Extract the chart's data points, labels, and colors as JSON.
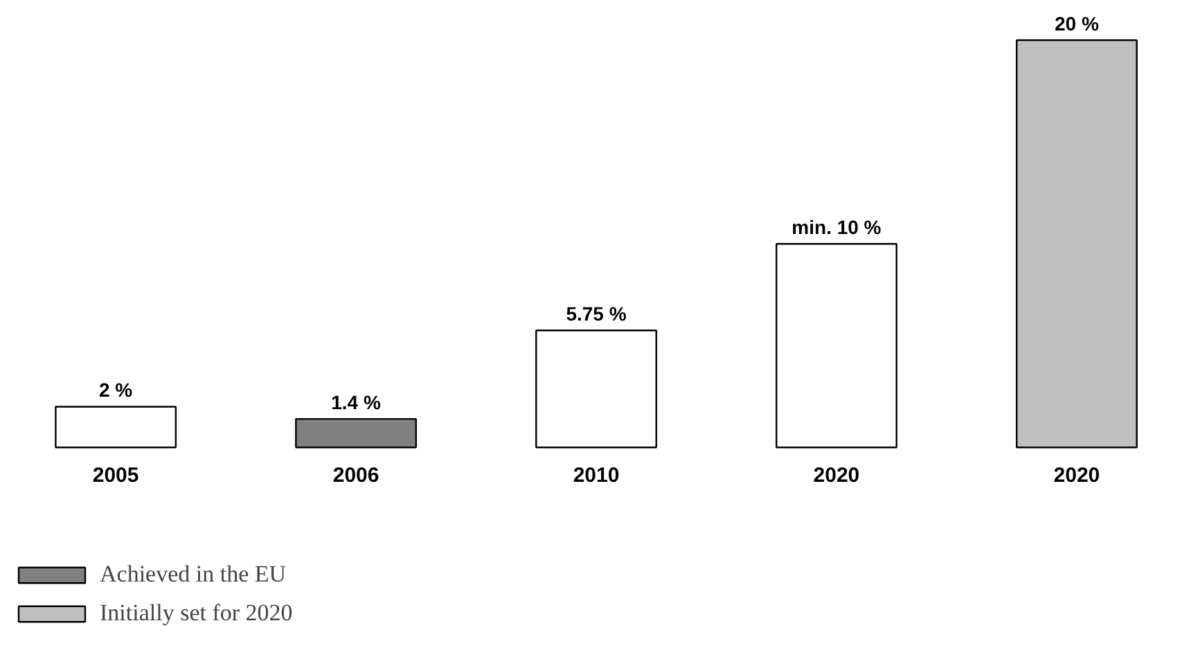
{
  "chart_data": {
    "type": "bar",
    "categories": [
      "2005",
      "2006",
      "2010",
      "2020",
      "2020"
    ],
    "series": [
      {
        "color": "#ffffff",
        "values": [
          2,
          null,
          5.75,
          10,
          null
        ],
        "value_labels": [
          "2 %",
          null,
          "5.75 %",
          "min. 10 %",
          null
        ]
      },
      {
        "name": "Achieved in the EU",
        "color": "#808080",
        "values": [
          null,
          1.4,
          null,
          null,
          null
        ],
        "value_labels": [
          null,
          "1.4 %",
          null,
          null,
          null
        ]
      },
      {
        "name": "Initially set for 2020",
        "color": "#c0c0c0",
        "values": [
          null,
          null,
          null,
          null,
          20
        ],
        "value_labels": [
          null,
          null,
          null,
          null,
          "20 %"
        ]
      }
    ],
    "legend": "bottom left"
  }
}
